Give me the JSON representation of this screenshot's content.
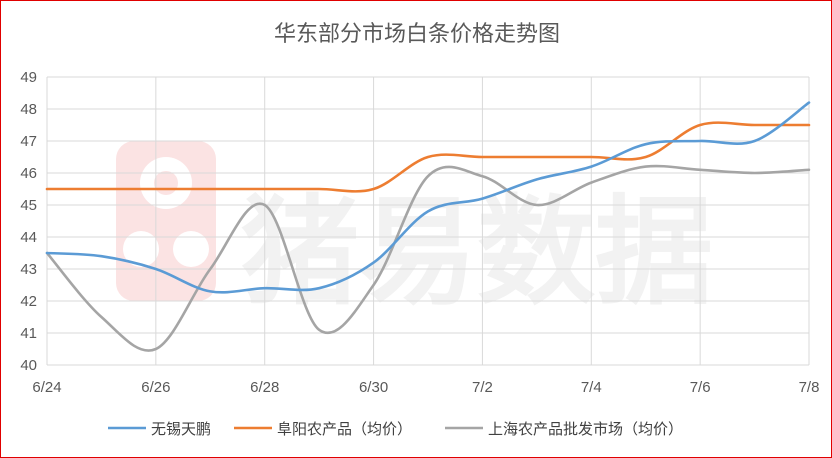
{
  "chart_data": {
    "type": "line",
    "title": "华东部分市场白条价格走势图",
    "xlabel": "",
    "ylabel": "",
    "x": [
      "6/24",
      "6/25",
      "6/26",
      "6/27",
      "6/28",
      "6/29",
      "6/30",
      "7/1",
      "7/2",
      "7/3",
      "7/4",
      "7/5",
      "7/6",
      "7/7",
      "7/8"
    ],
    "x_tick_labels": [
      "6/24",
      "6/26",
      "6/28",
      "6/30",
      "7/2",
      "7/4",
      "7/6",
      "7/8"
    ],
    "ylim": [
      40,
      49
    ],
    "y_ticks": [
      40,
      41,
      42,
      43,
      44,
      45,
      46,
      47,
      48,
      49
    ],
    "grid": true,
    "legend_position": "bottom",
    "smooth": true,
    "series": [
      {
        "name": "无锡天鹏",
        "color": "#5b9bd5",
        "values": [
          43.5,
          43.4,
          43.0,
          42.3,
          42.4,
          42.4,
          43.2,
          44.8,
          45.2,
          45.8,
          46.2,
          46.9,
          47.0,
          47.0,
          48.2
        ]
      },
      {
        "name": "阜阳农产品（均价）",
        "color": "#ed7d31",
        "values": [
          45.5,
          45.5,
          45.5,
          45.5,
          45.5,
          45.5,
          45.5,
          46.5,
          46.5,
          46.5,
          46.5,
          46.5,
          47.5,
          47.5,
          47.5
        ]
      },
      {
        "name": "上海农产品批发市场（均价）",
        "color": "#a5a5a5",
        "values": [
          43.5,
          41.5,
          40.5,
          43.0,
          45.0,
          41.1,
          42.5,
          45.9,
          45.9,
          45.0,
          45.7,
          46.2,
          46.1,
          46.0,
          46.1
        ]
      }
    ]
  },
  "watermark": {
    "text": "猪易数据"
  }
}
